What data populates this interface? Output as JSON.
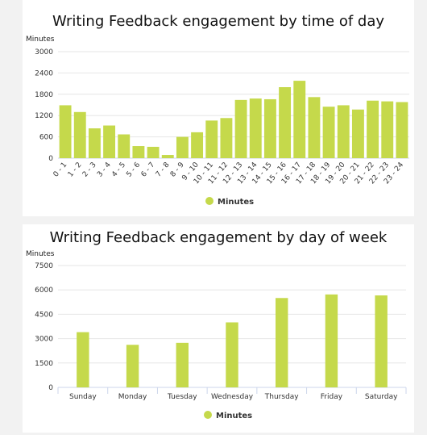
{
  "chart_data": [
    {
      "type": "bar",
      "title": "Writing Feedback engagement by time of day",
      "ylabel": "Minutes",
      "ylim": [
        0,
        3000
      ],
      "yticks": [
        "0",
        "600",
        "1200",
        "1800",
        "2400",
        "3000"
      ],
      "categories": [
        "0 - 1",
        "1 - 2",
        "2 - 3",
        "3 - 4",
        "4 - 5",
        "5 - 6",
        "6 - 7",
        "7 - 8",
        "8 - 9",
        "9 - 10",
        "10 - 11",
        "11 - 12",
        "12 - 13",
        "13 - 14",
        "14 - 15",
        "15 - 16",
        "16 - 17",
        "17 - 18",
        "18 - 19",
        "19 - 20",
        "20 - 21",
        "21 - 22",
        "22 - 23",
        "23 - 24"
      ],
      "series": [
        {
          "name": "Minutes",
          "values": [
            1490,
            1300,
            840,
            920,
            670,
            340,
            320,
            90,
            600,
            730,
            1060,
            1130,
            1640,
            1680,
            1660,
            2000,
            2180,
            1720,
            1450,
            1490,
            1370,
            1620,
            1600,
            1580
          ]
        }
      ],
      "color": "#c5d94b",
      "legend": "bottom-center",
      "grid": true,
      "x_tick_rotation": "diagonal"
    },
    {
      "type": "bar",
      "title": "Writing Feedback engagement by day of week",
      "ylabel": "Minutes",
      "ylim": [
        0,
        7500
      ],
      "yticks": [
        "0",
        "1500",
        "3000",
        "4500",
        "6000",
        "7500"
      ],
      "categories": [
        "Sunday",
        "Monday",
        "Tuesday",
        "Wednesday",
        "Thursday",
        "Friday",
        "Saturday"
      ],
      "series": [
        {
          "name": "Minutes",
          "values": [
            3400,
            2620,
            2740,
            4000,
            5500,
            5720,
            5660
          ]
        }
      ],
      "color": "#c5d94b",
      "legend": "bottom-center",
      "grid": true
    }
  ]
}
